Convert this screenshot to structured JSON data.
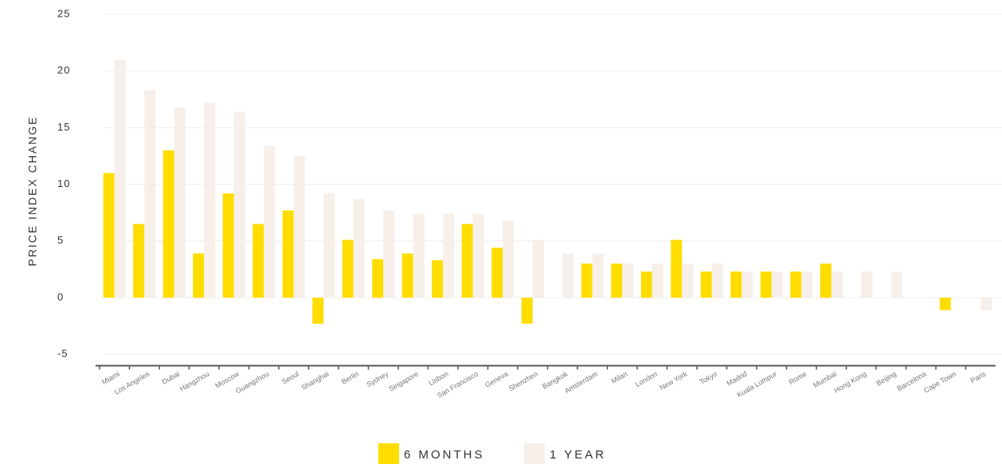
{
  "chart_data": {
    "type": "bar",
    "y_label": "PRICE INDEX CHANGE",
    "categories": [
      "Miami",
      "Los Angeles",
      "Dubai",
      "Hangzhou",
      "Moscow",
      "Guangzhou",
      "Seoul",
      "Shanghai",
      "Berlin",
      "Sydney",
      "Singapore",
      "Lisbon",
      "San Francisco",
      "Geneva",
      "Shenzhen",
      "Bangkok",
      "Amsterdam",
      "Milan",
      "London",
      "New York",
      "Tokyo",
      "Madrid",
      "Kuala Lumpur",
      "Rome",
      "Mumbai",
      "Hong Kong",
      "Beijing",
      "Barcelona",
      "Cape Town",
      "Paris"
    ],
    "series": [
      {
        "name": "6 MONTHS",
        "color": "#ffdd00",
        "values": [
          11,
          6.5,
          13,
          3.9,
          9.2,
          6.5,
          7.7,
          -2.3,
          5.1,
          3.4,
          3.9,
          3.3,
          6.5,
          4.4,
          -2.3,
          0,
          3,
          3,
          2.3,
          5.1,
          2.3,
          2.3,
          2.3,
          2.3,
          3,
          0,
          0,
          0,
          -1.1,
          0
        ]
      },
      {
        "name": "1 YEAR",
        "color": "#f6efea",
        "values": [
          21,
          18.3,
          16.8,
          17.2,
          16.4,
          13.4,
          12.5,
          9.2,
          8.7,
          7.7,
          7.4,
          7.4,
          7.4,
          6.8,
          5.1,
          3.9,
          3.9,
          3,
          3,
          3,
          3,
          2.3,
          2.3,
          2.3,
          2.3,
          2.3,
          2.3,
          0,
          0,
          -1.1
        ]
      }
    ],
    "ylim": [
      -6,
      25
    ],
    "yticks": [
      -5,
      0,
      5,
      10,
      15,
      20,
      25
    ],
    "grid": true
  }
}
